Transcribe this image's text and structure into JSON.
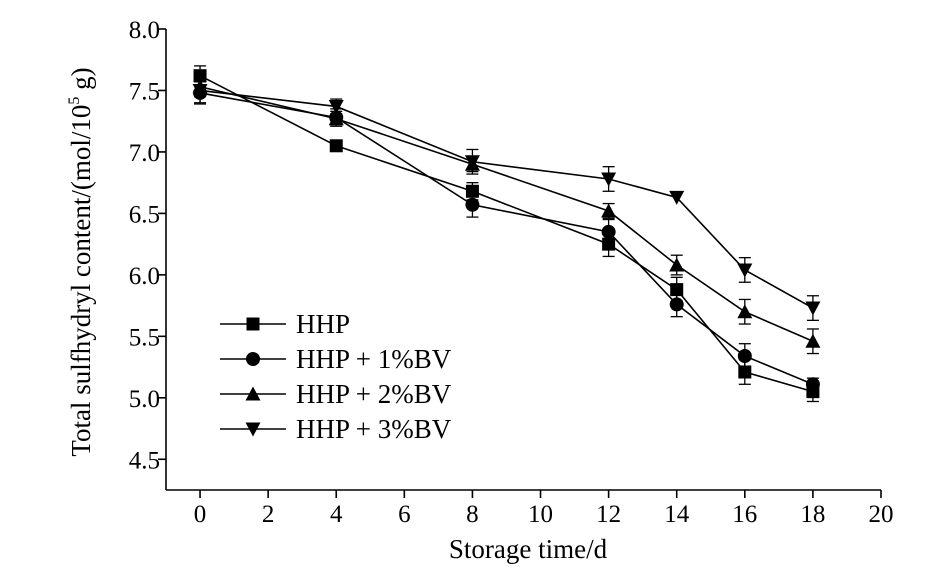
{
  "chart_data": {
    "type": "line",
    "xlabel": "Storage time/d",
    "ylabel_main": "Total sulfhydryl content/(mol/10",
    "ylabel_sup": "5",
    "ylabel_end": " g)",
    "xlim": [
      -1,
      20
    ],
    "ylim": [
      4.25,
      8.0
    ],
    "xticks": [
      0,
      2,
      4,
      6,
      8,
      10,
      12,
      14,
      16,
      18,
      20
    ],
    "xtick_labels": [
      "0",
      "2",
      "4",
      "6",
      "8",
      "10",
      "12",
      "14",
      "16",
      "18",
      "20"
    ],
    "yticks": [
      4.5,
      5.0,
      5.5,
      6.0,
      6.5,
      7.0,
      7.5,
      8.0
    ],
    "ytick_labels": [
      "4.5",
      "5.0",
      "5.5",
      "6.0",
      "6.5",
      "7.0",
      "7.5",
      "8.0"
    ],
    "grid": false,
    "legend_position": "bottom-left",
    "x": [
      0,
      4,
      8,
      12,
      14,
      16,
      18
    ],
    "series": [
      {
        "name": "HHP",
        "marker": "square",
        "values": [
          7.62,
          7.05,
          6.68,
          6.25,
          5.88,
          5.21,
          5.05
        ],
        "errors": [
          0.08,
          0,
          0.07,
          0.1,
          0.1,
          0.1,
          0.08
        ]
      },
      {
        "name": "HHP + 1%BV",
        "marker": "circle",
        "values": [
          7.48,
          7.28,
          6.57,
          6.35,
          5.76,
          5.34,
          5.11
        ],
        "errors": [
          0.09,
          0.07,
          0.1,
          0.1,
          0.1,
          0.1,
          0.05
        ]
      },
      {
        "name": "HHP + 2%BV",
        "marker": "triangle-up",
        "values": [
          7.53,
          7.27,
          6.9,
          6.52,
          6.08,
          5.7,
          5.46
        ],
        "errors": [
          0.08,
          0.06,
          0.06,
          0.06,
          0.08,
          0.1,
          0.1
        ]
      },
      {
        "name": "HHP + 3%BV",
        "marker": "triangle-down",
        "values": [
          7.5,
          7.37,
          6.92,
          6.78,
          6.63,
          6.04,
          5.73
        ],
        "errors": [
          0.1,
          0.06,
          0.1,
          0.1,
          0,
          0.1,
          0.1
        ]
      }
    ],
    "colors": {
      "line": "#000000",
      "marker": "#000000"
    }
  }
}
